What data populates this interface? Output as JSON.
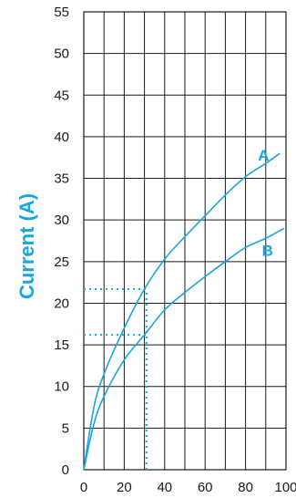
{
  "chart_data": {
    "type": "line",
    "title": "",
    "xlabel": "",
    "ylabel": "Current (A)",
    "xlim": [
      0,
      100
    ],
    "ylim": [
      0,
      55
    ],
    "x_ticks": [
      "0",
      "20",
      "40",
      "60",
      "80",
      "100"
    ],
    "y_ticks": [
      "0",
      "5",
      "10",
      "15",
      "20",
      "25",
      "30",
      "35",
      "40",
      "45",
      "50",
      "55"
    ],
    "grid": true,
    "series": [
      {
        "name": "A",
        "x": [
          0,
          5,
          10,
          20,
          30,
          40,
          50,
          60,
          70,
          80,
          90,
          97
        ],
        "y": [
          0,
          7.5,
          11.5,
          17,
          21.7,
          25.3,
          28,
          30.5,
          33,
          35.2,
          36.8,
          38
        ]
      },
      {
        "name": "B",
        "x": [
          0,
          5,
          10,
          20,
          30,
          40,
          50,
          60,
          70,
          80,
          90,
          99
        ],
        "y": [
          0,
          5.5,
          8.8,
          13.2,
          16.2,
          19.2,
          21.3,
          23.2,
          25,
          26.7,
          27.8,
          29
        ]
      }
    ],
    "reference": {
      "x": 31,
      "y_values": [
        21.7,
        16.2
      ]
    },
    "color": "#1aa5db",
    "grid_color": "#1a1a1a"
  }
}
